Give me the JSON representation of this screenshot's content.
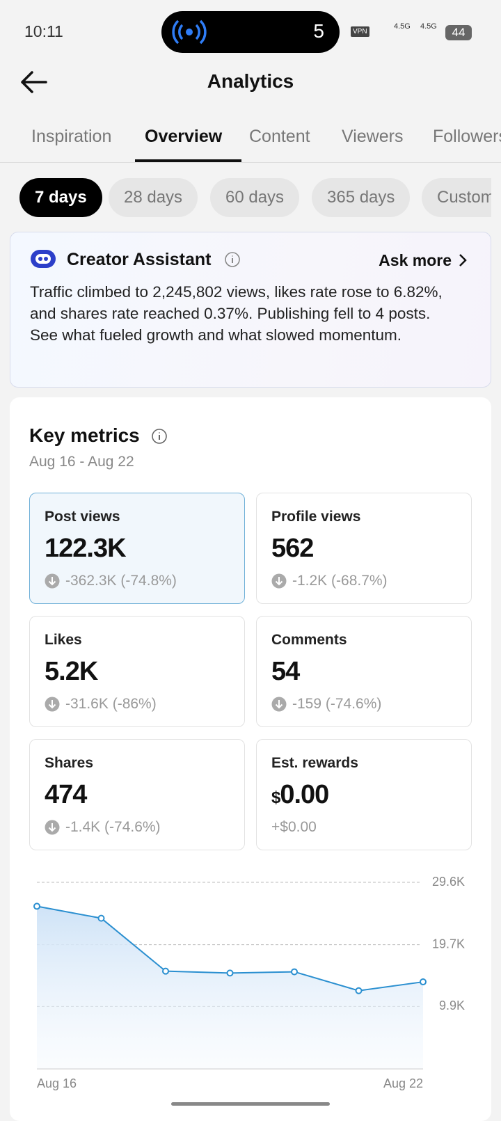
{
  "status_bar": {
    "time": "10:11",
    "live_count": "5",
    "vpn": "VPN",
    "network": [
      "4.5G",
      "4.5G"
    ],
    "battery": "44"
  },
  "header": {
    "title": "Analytics"
  },
  "tabs": [
    "Inspiration",
    "Overview",
    "Content",
    "Viewers",
    "Followers"
  ],
  "ranges": [
    "7 days",
    "28 days",
    "60 days",
    "365 days",
    "Custom"
  ],
  "assistant": {
    "title": "Creator Assistant",
    "action": "Ask more",
    "text": "Traffic climbed to 2,245,802 views, likes rate rose to 6.82%, and shares rate reached 0.37%. Publishing fell to 4 posts. See what fueled growth and what slowed momentum."
  },
  "key_metrics": {
    "title": "Key metrics",
    "date_range": "Aug 16 - Aug 22",
    "cards": [
      {
        "label": "Post views",
        "value": "122.3K",
        "change": "-362.3K (-74.8%)"
      },
      {
        "label": "Profile views",
        "value": "562",
        "change": "-1.2K (-68.7%)"
      },
      {
        "label": "Likes",
        "value": "5.2K",
        "change": "-31.6K (-86%)"
      },
      {
        "label": "Comments",
        "value": "54",
        "change": "-159 (-74.6%)"
      },
      {
        "label": "Shares",
        "value": "474",
        "change": "-1.4K (-74.6%)"
      },
      {
        "label": "Est. rewards",
        "currency": "$",
        "value": "0.00",
        "change": "+$0.00"
      }
    ]
  },
  "chart_data": {
    "type": "area",
    "categories": [
      "Aug 16",
      null,
      null,
      null,
      null,
      null,
      "Aug 22"
    ],
    "values": [
      25800,
      23900,
      15500,
      15200,
      15400,
      12400,
      13800
    ],
    "color": "#2a8fd0",
    "ylim": [
      0,
      29600
    ],
    "yticks": [
      {
        "value": 9900,
        "label": "9.9K"
      },
      {
        "value": 19700,
        "label": "19.7K"
      },
      {
        "value": 29600,
        "label": "29.6K"
      }
    ],
    "grid": true
  }
}
